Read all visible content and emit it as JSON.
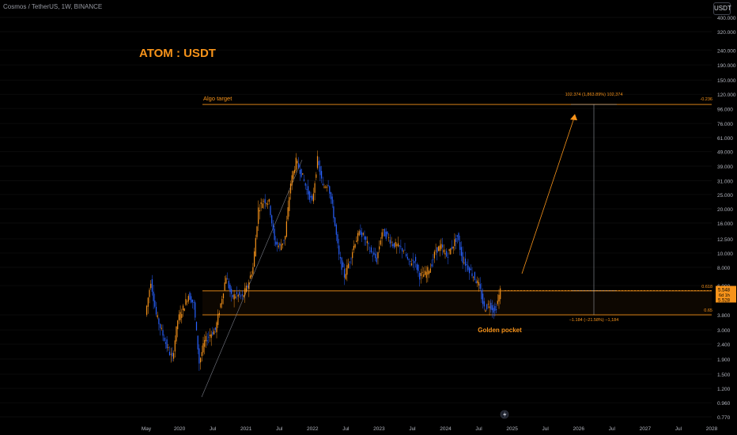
{
  "header": {
    "symbol_line": "Cosmos / TetherUS, 1W, BINANCE",
    "currency": "USDT"
  },
  "annotations": {
    "main_title": "ATOM : USDT",
    "algo_target": "Algo target",
    "golden_pocket": "Golden pocket",
    "target_measure": "102.374 (1,863.89%) 102,374",
    "down_measure": "−1.184 (−21.58%) −1,184",
    "fib_neg": "-0.236",
    "fib_618": "0.618",
    "fib_65": "0.65"
  },
  "price_box": {
    "price": "5.548",
    "countdown": "6d 1h",
    "level": "5.528"
  },
  "colors": {
    "up": "#f7931a",
    "down": "#2962ff",
    "accent": "#f7931a",
    "background": "#000000",
    "grid": "#0b0b0b"
  },
  "chart_data": {
    "type": "candlestick",
    "title": "ATOM : USDT",
    "y_scale": "log",
    "ylim": [
      0.77,
      400
    ],
    "y_ticks": [
      "400.000",
      "320.000",
      "240.000",
      "190.000",
      "150.000",
      "120.000",
      "96.000",
      "76.000",
      "61.000",
      "49.000",
      "39.000",
      "31.000",
      "25.000",
      "20.000",
      "16.000",
      "12.500",
      "10.000",
      "8.000",
      "6.000",
      "3.800",
      "3.000",
      "2.400",
      "1.900",
      "1.500",
      "1.200",
      "0.960",
      "0.770"
    ],
    "x_ticks": [
      "May",
      "2020",
      "Jul",
      "2021",
      "Jul",
      "2022",
      "Jul",
      "2023",
      "Jul",
      "2024",
      "Jul",
      "2025",
      "Jul",
      "2026",
      "Jul",
      "2027",
      "Jul",
      "2028"
    ],
    "levels": [
      {
        "label": "Algo target",
        "fib": "-0.236",
        "price": 102.374
      },
      {
        "label": "0.618",
        "price": 5.528
      },
      {
        "label": "0.65",
        "price": 3.8
      }
    ],
    "price_path": [
      [
        "2019-05",
        3.8
      ],
      [
        "2019-06",
        6.5
      ],
      [
        "2019-07",
        3.8
      ],
      [
        "2019-09",
        2.3
      ],
      [
        "2019-10",
        1.9
      ],
      [
        "2019-11",
        3.5
      ],
      [
        "2019-12",
        4.2
      ],
      [
        "2020-01",
        5.2
      ],
      [
        "2020-02",
        4.5
      ],
      [
        "2020-03",
        1.8
      ],
      [
        "2020-04",
        2.5
      ],
      [
        "2020-05",
        2.8
      ],
      [
        "2020-06",
        3.0
      ],
      [
        "2020-07",
        4.5
      ],
      [
        "2020-08",
        7.0
      ],
      [
        "2020-09",
        5.0
      ],
      [
        "2020-10",
        5.2
      ],
      [
        "2020-11",
        5.0
      ],
      [
        "2020-12",
        6.0
      ],
      [
        "2021-01",
        8.0
      ],
      [
        "2021-02",
        20.0
      ],
      [
        "2021-03",
        23.0
      ],
      [
        "2021-04",
        22.0
      ],
      [
        "2021-05",
        12.0
      ],
      [
        "2021-06",
        11.0
      ],
      [
        "2021-07",
        13.0
      ],
      [
        "2021-08",
        30.0
      ],
      [
        "2021-09",
        42.0
      ],
      [
        "2021-10",
        35.0
      ],
      [
        "2021-11",
        27.0
      ],
      [
        "2021-12",
        22.0
      ],
      [
        "2022-01",
        43.0
      ],
      [
        "2022-02",
        28.0
      ],
      [
        "2022-03",
        30.0
      ],
      [
        "2022-04",
        18.0
      ],
      [
        "2022-05",
        9.5
      ],
      [
        "2022-06",
        7.0
      ],
      [
        "2022-07",
        9.0
      ],
      [
        "2022-08",
        12.0
      ],
      [
        "2022-09",
        14.0
      ],
      [
        "2022-10",
        12.0
      ],
      [
        "2022-11",
        10.0
      ],
      [
        "2022-12",
        9.0
      ],
      [
        "2023-01",
        14.0
      ],
      [
        "2023-02",
        13.0
      ],
      [
        "2023-03",
        11.5
      ],
      [
        "2023-04",
        11.0
      ],
      [
        "2023-05",
        10.5
      ],
      [
        "2023-06",
        8.5
      ],
      [
        "2023-07",
        9.0
      ],
      [
        "2023-08",
        7.0
      ],
      [
        "2023-09",
        7.2
      ],
      [
        "2023-10",
        8.0
      ],
      [
        "2023-11",
        10.5
      ],
      [
        "2023-12",
        11.0
      ],
      [
        "2024-01",
        9.5
      ],
      [
        "2024-02",
        11.0
      ],
      [
        "2024-03",
        13.0
      ],
      [
        "2024-04",
        9.0
      ],
      [
        "2024-05",
        8.0
      ],
      [
        "2024-06",
        7.0
      ],
      [
        "2024-07",
        6.0
      ],
      [
        "2024-08",
        4.2
      ],
      [
        "2024-09",
        4.5
      ],
      [
        "2024-10",
        4.0
      ],
      [
        "2024-11",
        5.548
      ]
    ]
  }
}
